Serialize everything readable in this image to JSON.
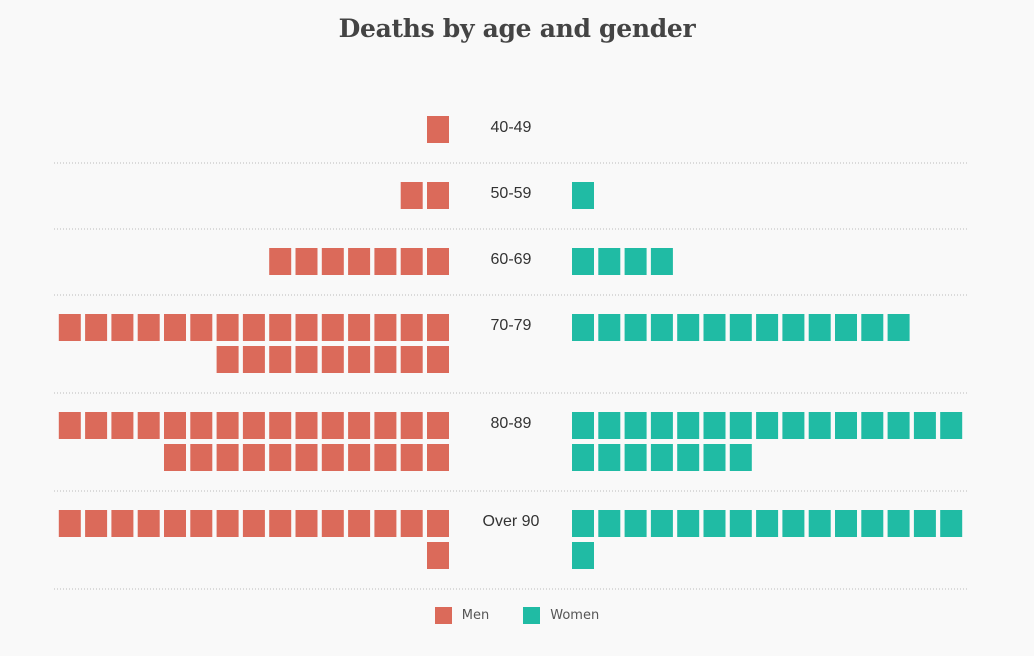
{
  "chart_data": {
    "type": "waffle-pyramid",
    "title": "Deaths by age and gender",
    "categories": [
      "40-49",
      "50-59",
      "60-69",
      "70-79",
      "80-89",
      "Over 90"
    ],
    "series": [
      {
        "name": "Men",
        "color": "#db6a5a",
        "values": [
          1,
          2,
          7,
          24,
          26,
          16
        ]
      },
      {
        "name": "Women",
        "color": "#20bba4",
        "values": [
          0,
          1,
          4,
          13,
          22,
          16
        ]
      }
    ],
    "legend_position": "bottom-center"
  }
}
